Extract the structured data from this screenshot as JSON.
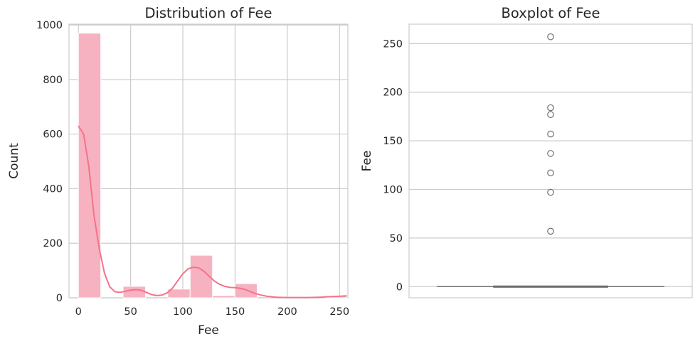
{
  "colors": {
    "hist_bar": "#f7b2c1",
    "kde_line": "#f4728a",
    "box_line": "#6e6e6e",
    "grid": "#cccccc",
    "spine": "#cccccc"
  },
  "chart_data": [
    {
      "type": "bar",
      "subtype": "histogram_with_kde",
      "title": "Distribution of Fee",
      "xlabel": "Fee",
      "ylabel": "Count",
      "xlim": [
        -9,
        258
      ],
      "ylim": [
        0,
        1003
      ],
      "xticks": [
        0,
        50,
        100,
        150,
        200,
        250
      ],
      "yticks": [
        0,
        200,
        400,
        600,
        800,
        1000
      ],
      "grid": true,
      "bin_edges": [
        0,
        21.4,
        42.8,
        64.2,
        85.6,
        107.0,
        128.4,
        149.8,
        171.2,
        192.6,
        214.0,
        235.4,
        256.8
      ],
      "counts": [
        970,
        0,
        42,
        0,
        32,
        156,
        8,
        52,
        0,
        0,
        0,
        8
      ],
      "kde": {
        "x": [
          0,
          5,
          10,
          15,
          20,
          25,
          30,
          35,
          40,
          45,
          50,
          55,
          60,
          65,
          70,
          75,
          80,
          85,
          90,
          95,
          100,
          105,
          110,
          115,
          120,
          125,
          130,
          135,
          140,
          145,
          150,
          155,
          160,
          165,
          170,
          175,
          180,
          185,
          190,
          200,
          210,
          220,
          230,
          240,
          250,
          257
        ],
        "y": [
          630,
          600,
          480,
          300,
          180,
          90,
          40,
          22,
          20,
          24,
          28,
          30,
          28,
          20,
          12,
          8,
          10,
          18,
          35,
          62,
          88,
          106,
          112,
          110,
          98,
          80,
          62,
          50,
          42,
          38,
          37,
          35,
          30,
          22,
          15,
          10,
          6,
          4,
          2,
          1,
          1,
          1,
          2,
          4,
          6,
          7
        ]
      }
    },
    {
      "type": "box",
      "title": "Boxplot of Fee",
      "xlabel": "",
      "ylabel": "Fee",
      "ylim": [
        -11.5,
        270
      ],
      "yticks": [
        0,
        50,
        100,
        150,
        200,
        250
      ],
      "grid": true,
      "box": {
        "q1": 0,
        "median": 0,
        "q3": 0,
        "whisker_low": 0,
        "whisker_high": 0
      },
      "outliers": [
        57,
        97,
        117,
        137,
        157,
        177,
        184,
        257
      ]
    }
  ]
}
